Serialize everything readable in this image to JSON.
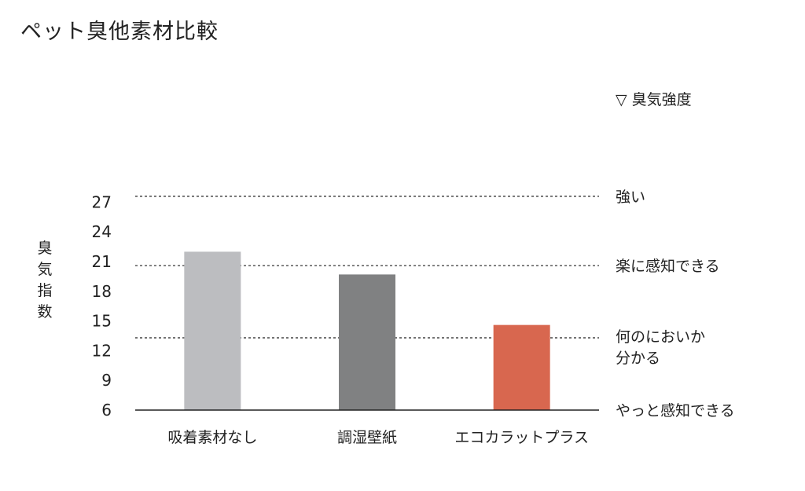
{
  "chart_data": {
    "type": "bar",
    "title": "ペット臭他素材比較",
    "ylabel": "臭気指数",
    "ylim": [
      6,
      27
    ],
    "yticks": [
      6,
      9,
      12,
      15,
      18,
      21,
      24,
      27
    ],
    "categories": [
      "吸着素材なし",
      "調湿壁紙",
      "エコカラットプラス"
    ],
    "values": [
      22,
      19.7,
      14.6
    ],
    "bar_colors": [
      "#bcbdc0",
      "#808182",
      "#d8674f"
    ],
    "legend_title": "▽ 臭気強度",
    "reference_lines": [
      {
        "value": 27.6,
        "label": [
          "強い"
        ]
      },
      {
        "value": 20.6,
        "label": [
          "楽に感知できる"
        ]
      },
      {
        "value": 13.3,
        "label": [
          "何のにおいか",
          "分かる"
        ]
      },
      {
        "value": 6,
        "label": [
          "やっと感知できる"
        ]
      }
    ],
    "grid": false
  }
}
